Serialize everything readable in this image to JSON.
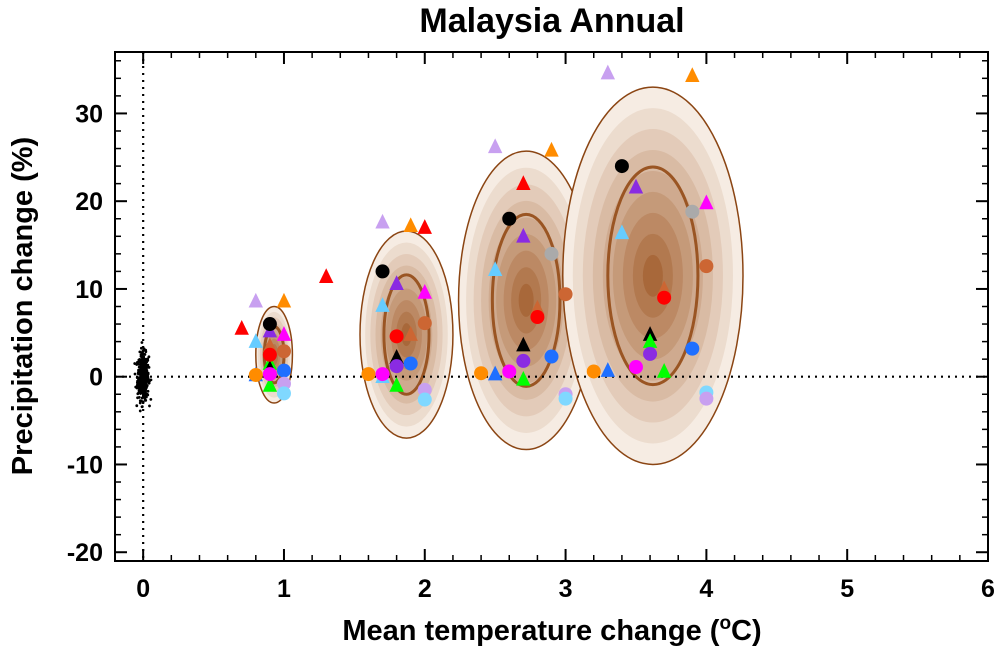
{
  "chart_data": {
    "type": "scatter",
    "title": "Malaysia Annual",
    "xlabel": "Mean temperature change (",
    "xlabel_sup": "o",
    "xlabel_suffix": "C)",
    "ylabel": "Precipitation change (%)",
    "xlim": [
      -0.2,
      6
    ],
    "ylim": [
      -21,
      37
    ],
    "xticks": [
      0,
      1,
      2,
      3,
      4,
      5,
      6
    ],
    "yticks": [
      -20,
      -10,
      0,
      10,
      20,
      30
    ],
    "ytick_labels": [
      "-20",
      "-10",
      "0",
      "10",
      "20",
      "30"
    ],
    "reference_lines": {
      "x": 0,
      "y": 0,
      "style": "dotted"
    },
    "colors": {
      "ellipse_outline": "#8B4513",
      "ellipse_fill_light": "#f6ece3",
      "ellipse_fill_dark": "#a8683a",
      "inner_ring": "#9a5523"
    },
    "control_cloud": {
      "center": [
        0,
        0
      ],
      "sd_x": 0.02,
      "sd_y": 1.3,
      "count": 450,
      "color": "#000000"
    },
    "ellipses": [
      {
        "center": [
          0.93,
          2.5
        ],
        "semi_x": 0.13,
        "semi_y": 5.5,
        "inner_semi_x": 0.07,
        "inner_semi_y": 3.2
      },
      {
        "center": [
          1.87,
          4.8
        ],
        "semi_x": 0.33,
        "semi_y": 11.8,
        "inner_semi_x": 0.16,
        "inner_semi_y": 6.8
      },
      {
        "center": [
          2.72,
          8.7
        ],
        "semi_x": 0.48,
        "semi_y": 17.0,
        "inner_semi_x": 0.24,
        "inner_semi_y": 9.8
      },
      {
        "center": [
          3.62,
          11.5
        ],
        "semi_x": 0.64,
        "semi_y": 21.5,
        "inner_semi_x": 0.32,
        "inner_semi_y": 12.4
      }
    ],
    "series": [
      {
        "name": "triangles",
        "marker": "triangle",
        "points": [
          {
            "x": 0.7,
            "y": 5.5,
            "color": "#ff0000"
          },
          {
            "x": 0.8,
            "y": 8.6,
            "color": "#c8a0f0"
          },
          {
            "x": 0.8,
            "y": 4.0,
            "color": "#66ccff"
          },
          {
            "x": 0.8,
            "y": 0.2,
            "color": "#1f6fff"
          },
          {
            "x": 0.9,
            "y": 5.2,
            "color": "#8a2be2"
          },
          {
            "x": 0.9,
            "y": 3.5,
            "color": "#cc6633"
          },
          {
            "x": 0.9,
            "y": 1.5,
            "color": "#00ff00"
          },
          {
            "x": 0.9,
            "y": 0.9,
            "color": "#000000"
          },
          {
            "x": 0.9,
            "y": -1.0,
            "color": "#00ff00"
          },
          {
            "x": 1.0,
            "y": 8.6,
            "color": "#ff8c00"
          },
          {
            "x": 1.0,
            "y": 4.8,
            "color": "#ff00ff"
          },
          {
            "x": 1.3,
            "y": 11.4,
            "color": "#ff0000"
          },
          {
            "x": 1.7,
            "y": 17.6,
            "color": "#c8a0f0"
          },
          {
            "x": 1.7,
            "y": 8.1,
            "color": "#66ccff"
          },
          {
            "x": 1.7,
            "y": 0.0,
            "color": "#66ccff"
          },
          {
            "x": 1.8,
            "y": 10.6,
            "color": "#8a2be2"
          },
          {
            "x": 1.8,
            "y": 2.2,
            "color": "#000000"
          },
          {
            "x": 1.8,
            "y": -1.0,
            "color": "#00ff00"
          },
          {
            "x": 1.9,
            "y": 17.2,
            "color": "#ff8c00"
          },
          {
            "x": 1.9,
            "y": 4.8,
            "color": "#cc6633"
          },
          {
            "x": 2.0,
            "y": 17.0,
            "color": "#ff0000"
          },
          {
            "x": 2.0,
            "y": 9.6,
            "color": "#ff00ff"
          },
          {
            "x": 2.5,
            "y": 26.2,
            "color": "#c8a0f0"
          },
          {
            "x": 2.5,
            "y": 12.2,
            "color": "#66ccff"
          },
          {
            "x": 2.5,
            "y": 0.3,
            "color": "#1f6fff"
          },
          {
            "x": 2.7,
            "y": 22.0,
            "color": "#ff0000"
          },
          {
            "x": 2.7,
            "y": 16.0,
            "color": "#8a2be2"
          },
          {
            "x": 2.7,
            "y": 3.6,
            "color": "#000000"
          },
          {
            "x": 2.7,
            "y": -0.3,
            "color": "#00ff00"
          },
          {
            "x": 2.8,
            "y": 7.8,
            "color": "#cc6633"
          },
          {
            "x": 2.9,
            "y": 25.8,
            "color": "#ff8c00"
          },
          {
            "x": 3.3,
            "y": 34.6,
            "color": "#c8a0f0"
          },
          {
            "x": 3.3,
            "y": 0.7,
            "color": "#1f6fff"
          },
          {
            "x": 3.4,
            "y": 16.4,
            "color": "#66ccff"
          },
          {
            "x": 3.5,
            "y": 21.6,
            "color": "#8a2be2"
          },
          {
            "x": 3.6,
            "y": 4.8,
            "color": "#000000"
          },
          {
            "x": 3.6,
            "y": 4.0,
            "color": "#00ff00"
          },
          {
            "x": 3.7,
            "y": 10.0,
            "color": "#cc6633"
          },
          {
            "x": 3.7,
            "y": 0.6,
            "color": "#00ff00"
          },
          {
            "x": 3.9,
            "y": 34.3,
            "color": "#ff8c00"
          },
          {
            "x": 4.0,
            "y": 19.8,
            "color": "#ff00ff"
          }
        ]
      },
      {
        "name": "circles",
        "marker": "circle",
        "points": [
          {
            "x": 0.8,
            "y": 0.2,
            "color": "#ff8c00"
          },
          {
            "x": 0.9,
            "y": 6.0,
            "color": "#000000"
          },
          {
            "x": 0.9,
            "y": 2.5,
            "color": "#ff0000"
          },
          {
            "x": 0.9,
            "y": 0.3,
            "color": "#ff00ff"
          },
          {
            "x": 1.0,
            "y": 2.9,
            "color": "#cc6633"
          },
          {
            "x": 1.0,
            "y": 0.7,
            "color": "#1f6fff"
          },
          {
            "x": 1.0,
            "y": -0.8,
            "color": "#c8a0f0"
          },
          {
            "x": 1.0,
            "y": -1.9,
            "color": "#80d8ff"
          },
          {
            "x": 1.6,
            "y": 0.3,
            "color": "#ff8c00"
          },
          {
            "x": 1.7,
            "y": 12.0,
            "color": "#000000"
          },
          {
            "x": 1.7,
            "y": 0.3,
            "color": "#ff00ff"
          },
          {
            "x": 1.8,
            "y": 4.6,
            "color": "#ff0000"
          },
          {
            "x": 1.8,
            "y": 1.2,
            "color": "#8a2be2"
          },
          {
            "x": 1.9,
            "y": 1.5,
            "color": "#1f6fff"
          },
          {
            "x": 2.0,
            "y": 6.1,
            "color": "#cc6633"
          },
          {
            "x": 2.0,
            "y": -1.5,
            "color": "#c8a0f0"
          },
          {
            "x": 2.0,
            "y": -2.6,
            "color": "#80d8ff"
          },
          {
            "x": 2.4,
            "y": 0.4,
            "color": "#ff8c00"
          },
          {
            "x": 2.6,
            "y": 18.0,
            "color": "#000000"
          },
          {
            "x": 2.6,
            "y": 0.6,
            "color": "#ff00ff"
          },
          {
            "x": 2.7,
            "y": 1.8,
            "color": "#8a2be2"
          },
          {
            "x": 2.8,
            "y": 6.8,
            "color": "#ff0000"
          },
          {
            "x": 2.9,
            "y": 14.0,
            "color": "#aaaaaa"
          },
          {
            "x": 2.9,
            "y": 2.3,
            "color": "#1f6fff"
          },
          {
            "x": 3.0,
            "y": 9.4,
            "color": "#cc6633"
          },
          {
            "x": 3.0,
            "y": -2.0,
            "color": "#c8a0f0"
          },
          {
            "x": 3.0,
            "y": -2.5,
            "color": "#80d8ff"
          },
          {
            "x": 3.2,
            "y": 0.6,
            "color": "#ff8c00"
          },
          {
            "x": 3.4,
            "y": 24.0,
            "color": "#000000"
          },
          {
            "x": 3.5,
            "y": 1.1,
            "color": "#ff00ff"
          },
          {
            "x": 3.6,
            "y": 2.6,
            "color": "#8a2be2"
          },
          {
            "x": 3.7,
            "y": 9.0,
            "color": "#ff0000"
          },
          {
            "x": 3.9,
            "y": 18.8,
            "color": "#aaaaaa"
          },
          {
            "x": 3.9,
            "y": 3.2,
            "color": "#1f6fff"
          },
          {
            "x": 4.0,
            "y": 12.6,
            "color": "#cc6633"
          },
          {
            "x": 4.0,
            "y": -1.8,
            "color": "#80d8ff"
          },
          {
            "x": 4.0,
            "y": -2.5,
            "color": "#c8a0f0"
          }
        ]
      }
    ]
  }
}
